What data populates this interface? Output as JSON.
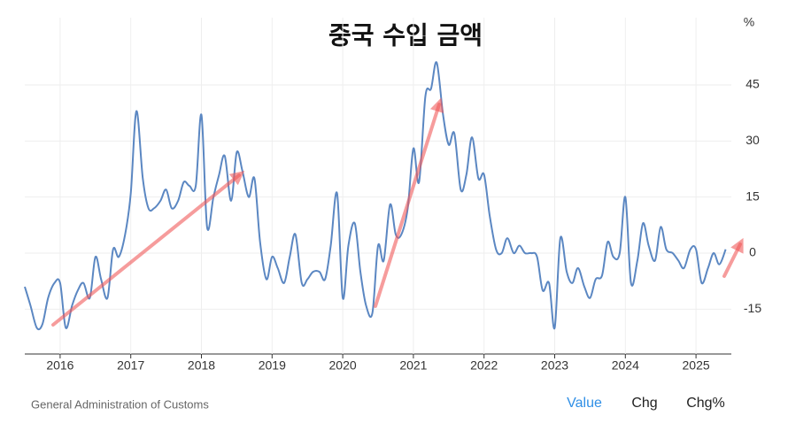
{
  "chart_data": {
    "type": "line",
    "title": "중국 수입 금액",
    "y_unit": "%",
    "source": "General Administration of Customs",
    "buttons": [
      "Value",
      "Chg",
      "Chg%"
    ],
    "x": [
      2015.5,
      2015.58,
      2015.67,
      2015.75,
      2015.83,
      2015.92,
      2016,
      2016.08,
      2016.17,
      2016.25,
      2016.33,
      2016.42,
      2016.5,
      2016.58,
      2016.67,
      2016.75,
      2016.83,
      2016.92,
      2017,
      2017.08,
      2017.17,
      2017.25,
      2017.33,
      2017.42,
      2017.5,
      2017.58,
      2017.67,
      2017.75,
      2017.83,
      2017.92,
      2018,
      2018.08,
      2018.17,
      2018.25,
      2018.33,
      2018.42,
      2018.5,
      2018.58,
      2018.67,
      2018.75,
      2018.83,
      2018.92,
      2019,
      2019.08,
      2019.17,
      2019.25,
      2019.33,
      2019.42,
      2019.5,
      2019.58,
      2019.67,
      2019.75,
      2019.83,
      2019.92,
      2020,
      2020.08,
      2020.17,
      2020.25,
      2020.33,
      2020.42,
      2020.5,
      2020.58,
      2020.67,
      2020.75,
      2020.83,
      2020.92,
      2021,
      2021.08,
      2021.17,
      2021.25,
      2021.33,
      2021.42,
      2021.5,
      2021.58,
      2021.67,
      2021.75,
      2021.83,
      2021.92,
      2022,
      2022.08,
      2022.17,
      2022.25,
      2022.33,
      2022.42,
      2022.5,
      2022.58,
      2022.67,
      2022.75,
      2022.83,
      2022.92,
      2023,
      2023.08,
      2023.17,
      2023.25,
      2023.33,
      2023.42,
      2023.5,
      2023.58,
      2023.67,
      2023.75,
      2023.83,
      2023.92,
      2024,
      2024.08,
      2024.17,
      2024.25,
      2024.33,
      2024.42,
      2024.5,
      2024.58,
      2024.67,
      2024.75,
      2024.83,
      2024.92,
      2025,
      2025.08,
      2025.17,
      2025.25,
      2025.33,
      2025.42
    ],
    "series": [
      {
        "name": "Value",
        "color": "#5b87c2",
        "values": [
          -9,
          -14,
          -20,
          -19,
          -12,
          -8,
          -8,
          -20,
          -14,
          -10,
          -8,
          -12,
          -1,
          -7,
          -12,
          1,
          -1,
          5,
          16,
          38,
          20,
          12,
          12,
          14,
          17,
          12,
          14,
          19,
          18,
          18,
          37,
          7,
          15,
          21,
          26,
          14,
          27,
          22,
          15,
          20,
          3,
          -7,
          -1,
          -4,
          -8,
          -1,
          5,
          -8,
          -7,
          -5,
          -5,
          -7,
          2,
          16,
          -12,
          2,
          8,
          -5,
          -14,
          -16,
          2,
          -2,
          13,
          5,
          5,
          12,
          28,
          19,
          42,
          44,
          51,
          37,
          29,
          32,
          17,
          21,
          31,
          20,
          21,
          10,
          1,
          0,
          4,
          0,
          2,
          0,
          0,
          -1,
          -10,
          -8,
          -20,
          4,
          -5,
          -8,
          -4,
          -9,
          -12,
          -7,
          -6,
          3,
          -1,
          0,
          15,
          -8,
          -2,
          8,
          2,
          -2,
          7,
          1,
          0,
          -2,
          -4,
          1,
          1,
          -8,
          -4,
          0,
          -3,
          1
        ]
      }
    ],
    "xlim": [
      2015.5,
      2025.5
    ],
    "xticks": [
      2016,
      2017,
      2018,
      2019,
      2020,
      2021,
      2022,
      2023,
      2024,
      2025
    ],
    "ylim": [
      -27,
      63
    ],
    "yticks": [
      -15,
      0,
      15,
      30,
      45
    ],
    "grid": true
  }
}
